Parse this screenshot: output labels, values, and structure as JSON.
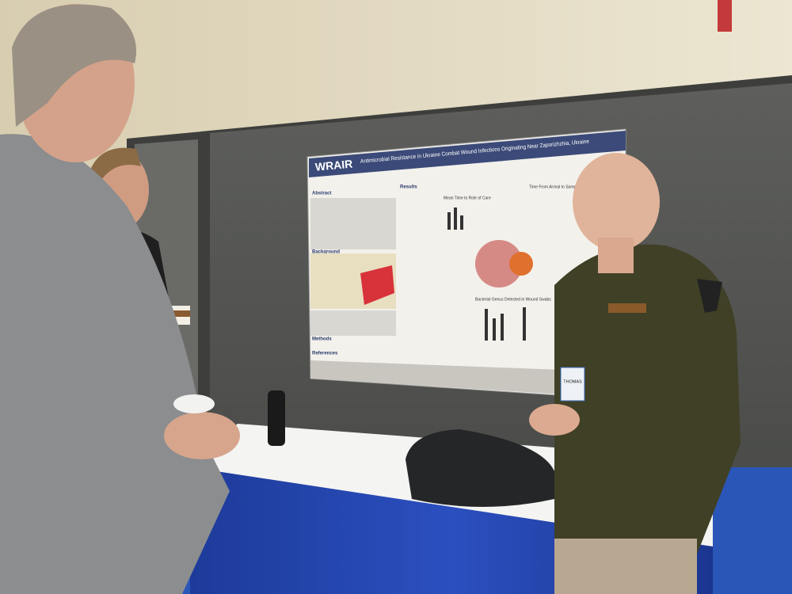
{
  "poster": {
    "logo": "WRAIR",
    "title": "Antimicrobial Resistance in Ukraine Combat Wound Infections Originating Near Zaporizhzhia, Ukraine",
    "sections": [
      "Abstract",
      "Results",
      "Background",
      "Methods",
      "References"
    ],
    "figures": [
      "Time From Arrival to Sample",
      "Mean Time to Role of Care",
      "Bacterial Genus Detected in Wound Swabs"
    ]
  },
  "badge": {
    "name": "THOMAS"
  }
}
